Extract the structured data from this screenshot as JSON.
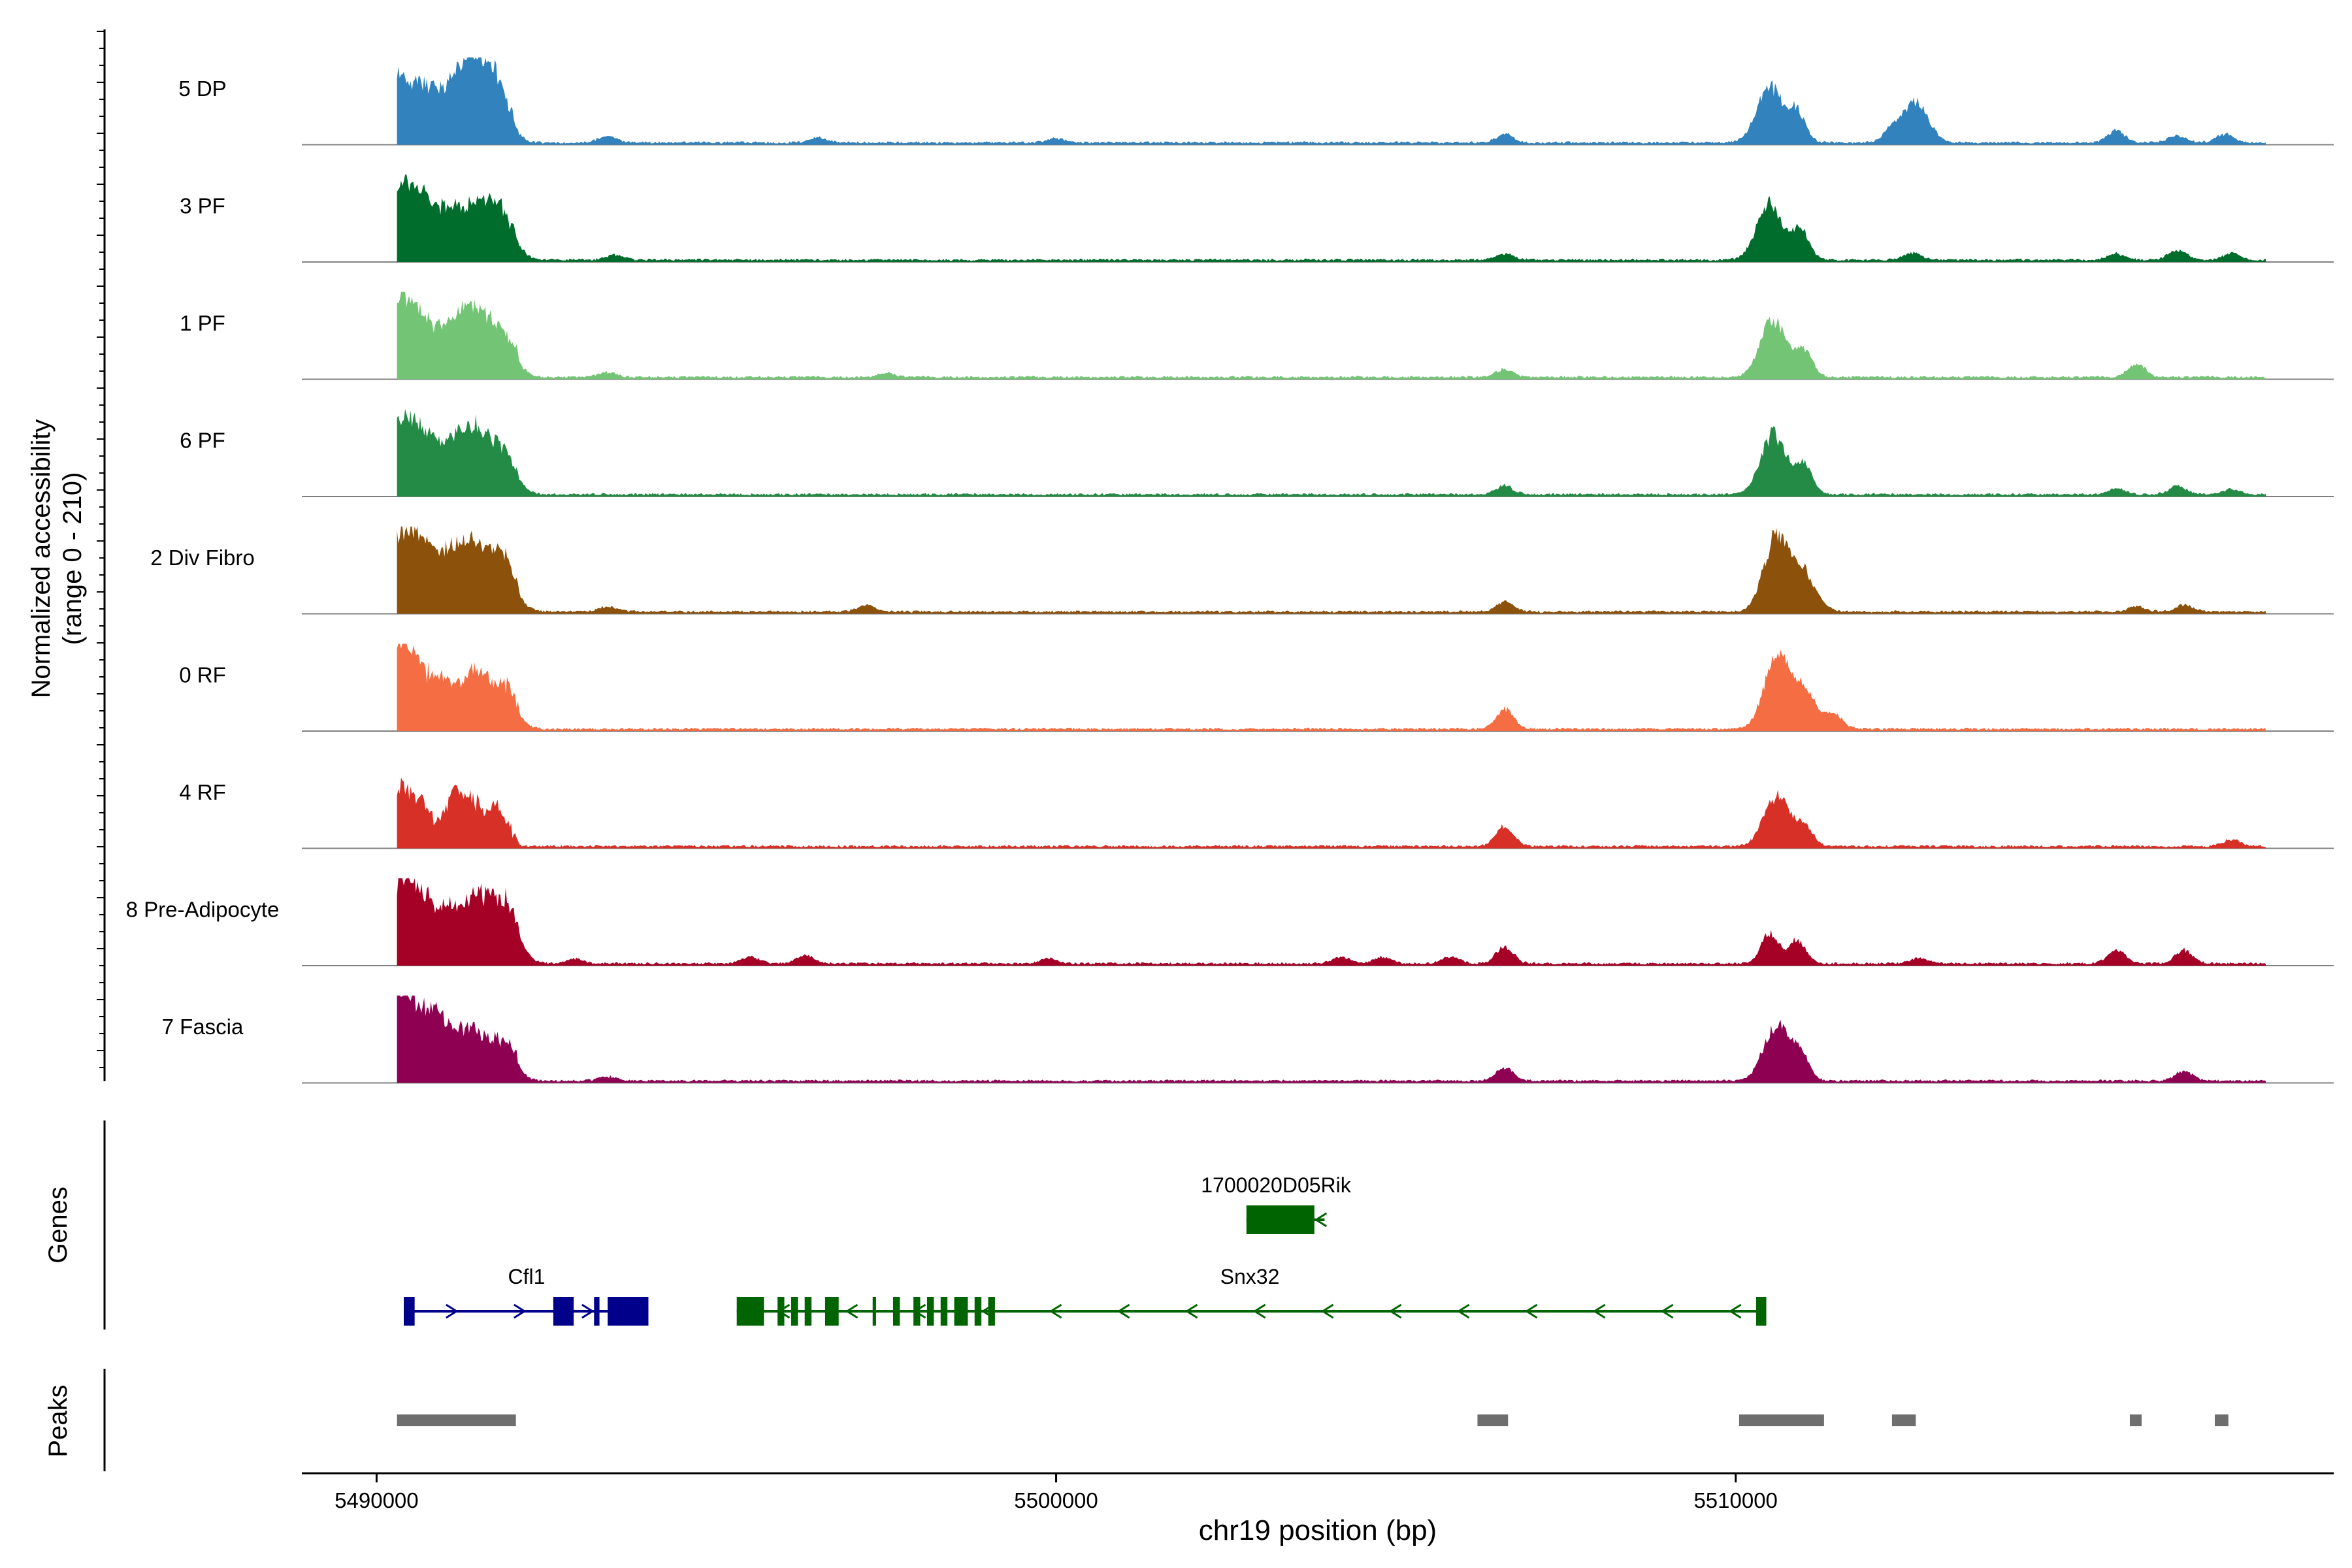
{
  "chart_data": {
    "type": "area",
    "title": "",
    "xlabel": "chr19 position (bp)",
    "ylabel": "Normalized accessibility",
    "ylabel_range": "(range 0 - 210)",
    "xlim": [
      5488900,
      5518800
    ],
    "ylim": [
      0,
      210
    ],
    "x_ticks": [
      5490000,
      5500000,
      5510000
    ],
    "x_tick_labels": [
      "5490000",
      "5500000",
      "5510000"
    ],
    "track_labels": {
      "genes": "Genes",
      "peaks": "Peaks"
    },
    "tracks": [
      {
        "name": "5 DP",
        "color": "#3182BD",
        "peaks": [
          [
            5490300,
            170
          ],
          [
            5490700,
            130
          ],
          [
            5491100,
            110
          ],
          [
            5491400,
            190
          ],
          [
            5491750,
            170
          ],
          [
            5493400,
            20
          ],
          [
            5496500,
            15
          ],
          [
            5500000,
            12
          ],
          [
            5506600,
            25
          ],
          [
            5510500,
            170
          ],
          [
            5510900,
            90
          ],
          [
            5512650,
            120
          ],
          [
            5512300,
            40
          ],
          [
            5515600,
            35
          ],
          [
            5516500,
            20
          ],
          [
            5517200,
            25
          ]
        ]
      },
      {
        "name": "3 PF",
        "color": "#006D2C",
        "peaks": [
          [
            5490350,
            200
          ],
          [
            5490700,
            130
          ],
          [
            5491100,
            120
          ],
          [
            5491500,
            130
          ],
          [
            5491850,
            120
          ],
          [
            5493500,
            15
          ],
          [
            5506600,
            20
          ],
          [
            5510500,
            170
          ],
          [
            5510950,
            90
          ],
          [
            5512600,
            20
          ],
          [
            5515600,
            18
          ],
          [
            5516500,
            30
          ],
          [
            5517300,
            20
          ]
        ]
      },
      {
        "name": "1 PF",
        "color": "#74C476",
        "peaks": [
          [
            5490350,
            210
          ],
          [
            5490700,
            120
          ],
          [
            5491100,
            120
          ],
          [
            5491450,
            170
          ],
          [
            5491850,
            120
          ],
          [
            5493400,
            15
          ],
          [
            5497500,
            12
          ],
          [
            5506600,
            25
          ],
          [
            5510550,
            170
          ],
          [
            5511000,
            80
          ],
          [
            5515900,
            40
          ]
        ]
      },
      {
        "name": "6 PF",
        "color": "#238B45",
        "peaks": [
          [
            5490350,
            200
          ],
          [
            5490700,
            140
          ],
          [
            5491100,
            120
          ],
          [
            5491450,
            160
          ],
          [
            5491850,
            120
          ],
          [
            5506600,
            25
          ],
          [
            5510550,
            180
          ],
          [
            5511000,
            90
          ],
          [
            5515600,
            18
          ],
          [
            5516500,
            25
          ],
          [
            5517300,
            15
          ]
        ]
      },
      {
        "name": "2 Div Fibro",
        "color": "#8C510A",
        "peaks": [
          [
            5490350,
            200
          ],
          [
            5490700,
            160
          ],
          [
            5491100,
            140
          ],
          [
            5491450,
            160
          ],
          [
            5491850,
            140
          ],
          [
            5493400,
            15
          ],
          [
            5497200,
            20
          ],
          [
            5506600,
            30
          ],
          [
            5510600,
            220
          ],
          [
            5511000,
            110
          ],
          [
            5515900,
            15
          ],
          [
            5516600,
            20
          ]
        ]
      },
      {
        "name": "0 RF",
        "color": "#F46D43",
        "peaks": [
          [
            5490350,
            230
          ],
          [
            5490700,
            120
          ],
          [
            5491000,
            100
          ],
          [
            5491400,
            160
          ],
          [
            5491850,
            120
          ],
          [
            5506600,
            60
          ],
          [
            5510600,
            210
          ],
          [
            5511000,
            110
          ],
          [
            5511450,
            40
          ]
        ]
      },
      {
        "name": "4 RF",
        "color": "#D73027",
        "peaks": [
          [
            5490350,
            160
          ],
          [
            5490700,
            90
          ],
          [
            5491100,
            100
          ],
          [
            5491400,
            120
          ],
          [
            5491800,
            90
          ],
          [
            5506600,
            60
          ],
          [
            5510600,
            150
          ],
          [
            5511000,
            60
          ],
          [
            5517300,
            20
          ]
        ]
      },
      {
        "name": "8 Pre-Adipocyte",
        "color": "#A50026",
        "peaks": [
          [
            5490350,
            210
          ],
          [
            5490700,
            150
          ],
          [
            5491100,
            130
          ],
          [
            5491500,
            170
          ],
          [
            5491900,
            160
          ],
          [
            5492900,
            15
          ],
          [
            5495500,
            20
          ],
          [
            5496300,
            25
          ],
          [
            5499900,
            15
          ],
          [
            5504200,
            20
          ],
          [
            5504800,
            20
          ],
          [
            5505800,
            20
          ],
          [
            5506600,
            50
          ],
          [
            5510500,
            90
          ],
          [
            5510900,
            70
          ],
          [
            5512700,
            15
          ],
          [
            5515600,
            40
          ],
          [
            5516600,
            40
          ]
        ]
      },
      {
        "name": "7 Fascia",
        "color": "#8E0152",
        "peaks": [
          [
            5490350,
            220
          ],
          [
            5490700,
            140
          ],
          [
            5491000,
            120
          ],
          [
            5491400,
            130
          ],
          [
            5491850,
            110
          ],
          [
            5493400,
            12
          ],
          [
            5506600,
            40
          ],
          [
            5510600,
            170
          ],
          [
            5510950,
            80
          ],
          [
            5516600,
            30
          ]
        ]
      }
    ],
    "genes": [
      {
        "name": "Cfl1",
        "strand": "+",
        "color": "#00008B",
        "start": 5490400,
        "end": 5494000,
        "exons": [
          [
            5490400,
            5490560
          ],
          [
            5492600,
            5492900
          ],
          [
            5493200,
            5493280
          ],
          [
            5493400,
            5494000
          ]
        ]
      },
      {
        "name": "Snx32",
        "strand": "-",
        "color": "#006400",
        "start": 5495300,
        "end": 5510450,
        "exons": [
          [
            5495300,
            5495700
          ],
          [
            5495900,
            5496000
          ],
          [
            5496100,
            5496200
          ],
          [
            5496300,
            5496400
          ],
          [
            5496600,
            5496800
          ],
          [
            5497300,
            5497350
          ],
          [
            5497600,
            5497700
          ],
          [
            5497900,
            5498000
          ],
          [
            5498100,
            5498200
          ],
          [
            5498300,
            5498400
          ],
          [
            5498500,
            5498700
          ],
          [
            5498800,
            5498900
          ],
          [
            5499000,
            5499100
          ],
          [
            5510300,
            5510450
          ]
        ]
      },
      {
        "name": "1700020D05Rik",
        "strand": "-",
        "color": "#006400",
        "start": 5502800,
        "end": 5503950,
        "exons": [
          [
            5502800,
            5503800
          ]
        ]
      }
    ],
    "peak_regions": [
      [
        5490300,
        5492050
      ],
      [
        5506200,
        5506650
      ],
      [
        5510050,
        5511300
      ],
      [
        5512300,
        5512650
      ],
      [
        5515800,
        5515950
      ],
      [
        5517050,
        5517250
      ]
    ]
  }
}
